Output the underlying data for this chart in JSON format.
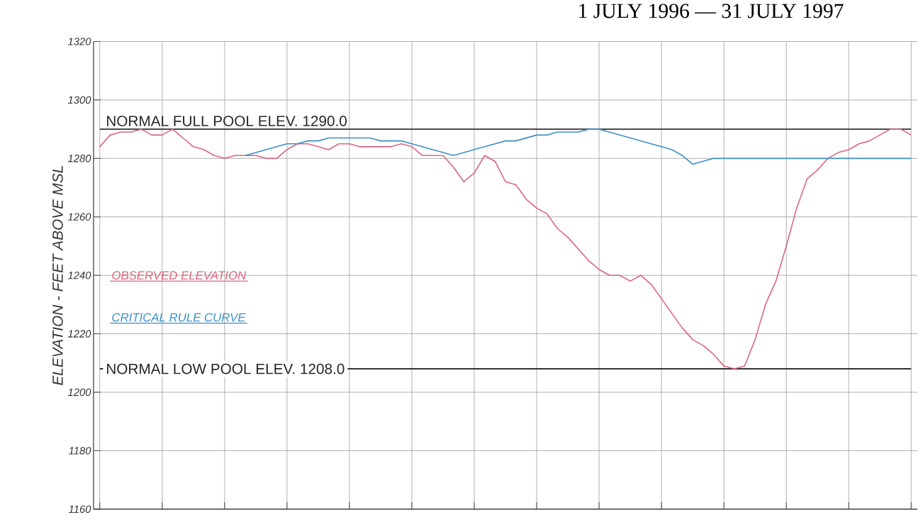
{
  "chart_data": {
    "type": "line",
    "title": "1 JULY 1996 — 31 JULY 1997",
    "ylabel": "ELEVATION - FEET ABOVE MSL",
    "categories": [
      null,
      null,
      null,
      null,
      null,
      null,
      null,
      null,
      null,
      null,
      null,
      null,
      null,
      null,
      null,
      null,
      null,
      null,
      null,
      null,
      null,
      null,
      null,
      null,
      null,
      null,
      null,
      null,
      null,
      null,
      null,
      null,
      null,
      null,
      null,
      null,
      null,
      null,
      null,
      null,
      null,
      null,
      null,
      null,
      null,
      null,
      null,
      null,
      null,
      null,
      null,
      null,
      null,
      null,
      null,
      null,
      null,
      null,
      null,
      null,
      null,
      null,
      null,
      null,
      null,
      null,
      null,
      null,
      null,
      null,
      null,
      null,
      null,
      null,
      null,
      null,
      null,
      null,
      null
    ],
    "series": [
      {
        "name": "OBSERVED ELEVATION",
        "color": "#d9667f",
        "values": [
          1284,
          1288,
          1289,
          1289,
          1290,
          1288,
          1288,
          1290,
          1287,
          1284,
          1283,
          1281,
          1280,
          1281,
          1281,
          1281,
          1280,
          1280,
          1283,
          1285,
          1285,
          1284,
          1283,
          1285,
          1285,
          1284,
          1284,
          1284,
          1284,
          1285,
          1284,
          1281,
          1281,
          1281,
          1277,
          1272,
          1275,
          1281,
          1279,
          1272,
          1271,
          1266,
          1263,
          1261,
          1256,
          1253,
          1249,
          1245,
          1242,
          1240,
          1240,
          1238,
          1240,
          1237,
          1232,
          1227,
          1222,
          1218,
          1216,
          1213,
          1209,
          1208,
          1209,
          1218,
          1230,
          1238,
          1250,
          1263,
          1273,
          1276,
          1280,
          1282,
          1283,
          1285,
          1286,
          1288,
          1290,
          1290,
          1288
        ]
      },
      {
        "name": "CRITICAL RULE CURVE",
        "color": "#3d8fc4",
        "values": [
          null,
          null,
          null,
          null,
          null,
          null,
          null,
          null,
          null,
          null,
          null,
          null,
          null,
          null,
          1281,
          1282,
          1283,
          1284,
          1285,
          1285,
          1286,
          1286,
          1287,
          1287,
          1287,
          1287,
          1287,
          1286,
          1286,
          1286,
          1285,
          1284,
          1283,
          1282,
          1281,
          1282,
          1283,
          1284,
          1285,
          1286,
          1286,
          1287,
          1288,
          1288,
          1289,
          1289,
          1289,
          1290,
          1290,
          1289,
          1288,
          1287,
          1286,
          1285,
          1284,
          1283,
          1281,
          1278,
          1279,
          1280,
          1280,
          1280,
          1280,
          1280,
          1280,
          1280,
          1280,
          1280,
          1280,
          1280,
          1280,
          1280,
          1280,
          1280,
          1280,
          1280,
          1280,
          1280,
          1280
        ]
      }
    ],
    "ylim": [
      1160,
      1320
    ],
    "yticks": [
      1160,
      1180,
      1200,
      1220,
      1240,
      1260,
      1280,
      1300,
      1320
    ],
    "ref_lines": [
      {
        "axis": "y",
        "value": 1290,
        "label": "NORMAL FULL POOL ELEV. 1290.0",
        "color": "#333333"
      },
      {
        "axis": "y",
        "value": 1208,
        "label": "NORMAL LOW POOL ELEV. 1208.0",
        "color": "#333333"
      }
    ],
    "grid": true,
    "tick_labels": "y",
    "legend": "left",
    "marker": "none",
    "line_style": "solid"
  }
}
